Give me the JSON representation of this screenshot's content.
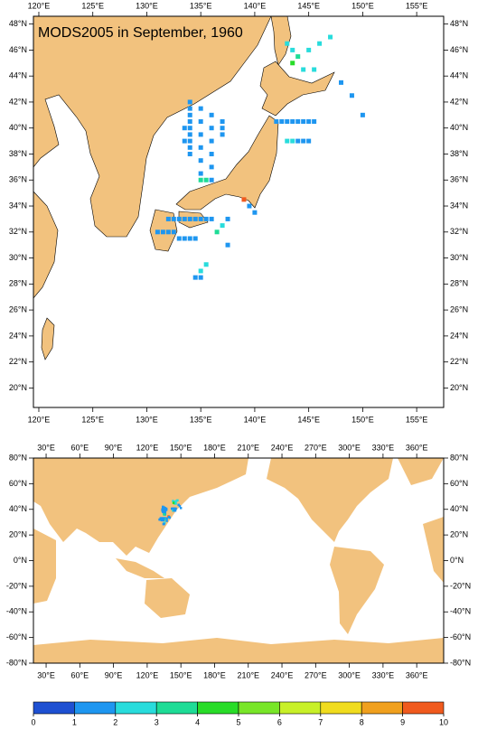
{
  "title": "MODS2005 in September, 1960",
  "upper_map": {
    "xlim": [
      119.5,
      157.5
    ],
    "ylim": [
      18.5,
      48.6
    ],
    "xticks": [
      {
        "value": 120,
        "label": "120°E"
      },
      {
        "value": 125,
        "label": "125°E"
      },
      {
        "value": 130,
        "label": "130°E"
      },
      {
        "value": 135,
        "label": "135°E"
      },
      {
        "value": 140,
        "label": "140°E"
      },
      {
        "value": 145,
        "label": "145°E"
      },
      {
        "value": 150,
        "label": "150°E"
      },
      {
        "value": 155,
        "label": "155°E"
      }
    ],
    "yticks": [
      {
        "value": 20,
        "label": "20°N"
      },
      {
        "value": 22,
        "label": "22°N"
      },
      {
        "value": 24,
        "label": "24°N"
      },
      {
        "value": 26,
        "label": "26°N"
      },
      {
        "value": 28,
        "label": "28°N"
      },
      {
        "value": 30,
        "label": "30°N"
      },
      {
        "value": 32,
        "label": "32°N"
      },
      {
        "value": 34,
        "label": "34°N"
      },
      {
        "value": 36,
        "label": "36°N"
      },
      {
        "value": 38,
        "label": "38°N"
      },
      {
        "value": 40,
        "label": "40°N"
      },
      {
        "value": 42,
        "label": "42°N"
      },
      {
        "value": 44,
        "label": "44°N"
      },
      {
        "value": 46,
        "label": "46°N"
      },
      {
        "value": 48,
        "label": "48°N"
      }
    ]
  },
  "lower_map": {
    "xlim": [
      18.7,
      384
    ],
    "ylim": [
      -80,
      80
    ],
    "xticks": [
      {
        "value": 30,
        "label": "30°E"
      },
      {
        "value": 60,
        "label": "60°E"
      },
      {
        "value": 90,
        "label": "90°E"
      },
      {
        "value": 120,
        "label": "120°E"
      },
      {
        "value": 150,
        "label": "150°E"
      },
      {
        "value": 180,
        "label": "180°E"
      },
      {
        "value": 210,
        "label": "210°E"
      },
      {
        "value": 240,
        "label": "240°E"
      },
      {
        "value": 270,
        "label": "270°E"
      },
      {
        "value": 300,
        "label": "300°E"
      },
      {
        "value": 330,
        "label": "330°E"
      },
      {
        "value": 360,
        "label": "360°E"
      }
    ],
    "yticks": [
      {
        "value": -80,
        "label": "-80°N"
      },
      {
        "value": -60,
        "label": "-60°N"
      },
      {
        "value": -40,
        "label": "-40°N"
      },
      {
        "value": -20,
        "label": "-20°N"
      },
      {
        "value": 0,
        "label": "0°N"
      },
      {
        "value": 20,
        "label": "20°N"
      },
      {
        "value": 40,
        "label": "40°N"
      },
      {
        "value": 60,
        "label": "60°N"
      },
      {
        "value": 80,
        "label": "80°N"
      }
    ]
  },
  "colorbar": {
    "ticks": [
      0,
      1,
      2,
      3,
      4,
      5,
      6,
      7,
      8,
      9,
      10
    ],
    "colors": [
      "#1e50d2",
      "#1e96f0",
      "#28dcdc",
      "#1edc96",
      "#28dc28",
      "#78e628",
      "#c8f028",
      "#f0dc1e",
      "#f0a01e",
      "#f05a1e"
    ]
  },
  "observations": {
    "lon": [
      134,
      134,
      134,
      134,
      134,
      134,
      134,
      134,
      134,
      135,
      135,
      135,
      135,
      135,
      135,
      135,
      136,
      136,
      136,
      136,
      136,
      136,
      137,
      137,
      137,
      133.5,
      133.5,
      135.5,
      132,
      132.5,
      133,
      133.5,
      134,
      134.5,
      135,
      135.5,
      136,
      131,
      131.5,
      132,
      132.5,
      133,
      133.5,
      134,
      134.5,
      136.5,
      137,
      137.5,
      137.5,
      135,
      135.5,
      135,
      134.5,
      142,
      142.5,
      143,
      143.5,
      144,
      144.5,
      145,
      145.5,
      143,
      143.5,
      144,
      144.5,
      145,
      143,
      143.5,
      144,
      145,
      146,
      147,
      144.5,
      145.5,
      143.5,
      148,
      149,
      150,
      139,
      139.5,
      140
    ],
    "lat": [
      42,
      41.5,
      41,
      40.5,
      40,
      39.5,
      39,
      38.5,
      38,
      41.5,
      40.5,
      39.5,
      38.5,
      37.5,
      36.5,
      36,
      41,
      40,
      39,
      38,
      37,
      36,
      40.5,
      40,
      39.5,
      40,
      39,
      36,
      33,
      33,
      33,
      33,
      33,
      33,
      33,
      33,
      33,
      32,
      32,
      32,
      32,
      31.5,
      31.5,
      31.5,
      31.5,
      32,
      32.5,
      33,
      31,
      29,
      29.5,
      28.5,
      28.5,
      40.5,
      40.5,
      40.5,
      40.5,
      40.5,
      40.5,
      40.5,
      40.5,
      39,
      39,
      39,
      39,
      39,
      46.5,
      46,
      45.5,
      46,
      46.5,
      47,
      44.5,
      44.5,
      45,
      43.5,
      42.5,
      41,
      34.5,
      34,
      33.5
    ],
    "value": [
      1.5,
      1.5,
      1.4,
      1.6,
      1.5,
      1.5,
      1.4,
      1.5,
      1.6,
      1.5,
      1.5,
      1.5,
      1.4,
      1.5,
      1.6,
      3.2,
      1.5,
      1.5,
      1.4,
      1.5,
      1.6,
      1.5,
      1.5,
      1.4,
      1.5,
      1.8,
      1.7,
      3.1,
      1.5,
      1.5,
      1.5,
      1.4,
      1.5,
      1.5,
      1.6,
      1.5,
      1.5,
      1.5,
      1.5,
      1.5,
      1.4,
      1.5,
      1.5,
      1.5,
      1.5,
      3.2,
      2.5,
      1.5,
      1.5,
      2.5,
      2.6,
      1.5,
      1.5,
      1.5,
      1.5,
      1.5,
      1.5,
      1.5,
      1.5,
      1.6,
      1.5,
      2.5,
      2.5,
      1.5,
      1.5,
      1.5,
      2.5,
      2.6,
      3.5,
      2.5,
      2.5,
      2.6,
      2.7,
      2.8,
      4.5,
      1.5,
      1.5,
      1.5,
      9.5,
      1.5,
      1.5
    ]
  }
}
